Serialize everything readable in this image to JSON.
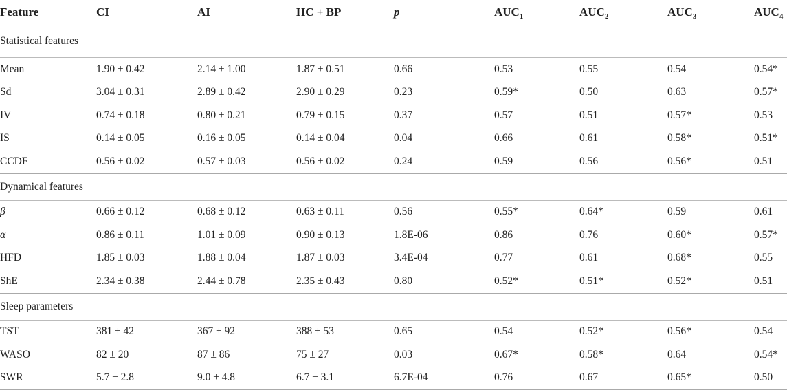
{
  "table": {
    "headers": [
      {
        "text": "Feature",
        "sub": ""
      },
      {
        "text": "CI",
        "sub": ""
      },
      {
        "text": "AI",
        "sub": ""
      },
      {
        "text": "HC + BP",
        "sub": ""
      },
      {
        "text": "p",
        "sub": ""
      },
      {
        "text": "AUC",
        "sub": "1"
      },
      {
        "text": "AUC",
        "sub": "2"
      },
      {
        "text": "AUC",
        "sub": "3"
      },
      {
        "text": "AUC",
        "sub": "4"
      }
    ],
    "sections": [
      {
        "title": "Statistical features",
        "rows": [
          [
            "Mean",
            "1.90 ± 0.42",
            "2.14 ± 1.00",
            "1.87 ± 0.51",
            "0.66",
            "0.53",
            "0.55",
            "0.54",
            "0.54*"
          ],
          [
            "Sd",
            "3.04 ± 0.31",
            "2.89 ± 0.42",
            "2.90 ± 0.29",
            "0.23",
            "0.59*",
            "0.50",
            "0.63",
            "0.57*"
          ],
          [
            "IV",
            "0.74 ± 0.18",
            "0.80 ± 0.21",
            "0.79 ± 0.15",
            "0.37",
            "0.57",
            "0.51",
            "0.57*",
            "0.53"
          ],
          [
            "IS",
            "0.14 ± 0.05",
            "0.16 ± 0.05",
            "0.14 ± 0.04",
            "0.04",
            "0.66",
            "0.61",
            "0.58*",
            "0.51*"
          ],
          [
            "CCDF",
            "0.56 ± 0.02",
            "0.57 ± 0.03",
            "0.56 ± 0.02",
            "0.24",
            "0.59",
            "0.56",
            "0.56*",
            "0.51"
          ]
        ]
      },
      {
        "title": "Dynamical features",
        "rows": [
          [
            "β",
            "0.66 ± 0.12",
            "0.68 ± 0.12",
            "0.63 ± 0.11",
            "0.56",
            "0.55*",
            "0.64*",
            "0.59",
            "0.61"
          ],
          [
            "α",
            "0.86 ± 0.11",
            "1.01 ± 0.09",
            "0.90 ± 0.13",
            "1.8E-06",
            "0.86",
            "0.76",
            "0.60*",
            "0.57*"
          ],
          [
            "HFD",
            "1.85 ± 0.03",
            "1.88 ± 0.04",
            "1.87 ± 0.03",
            "3.4E-04",
            "0.77",
            "0.61",
            "0.68*",
            "0.55"
          ],
          [
            "ShE",
            "2.34 ± 0.38",
            "2.44 ± 0.78",
            "2.35 ± 0.43",
            "0.80",
            "0.52*",
            "0.51*",
            "0.52*",
            "0.51"
          ]
        ]
      },
      {
        "title": "Sleep parameters",
        "rows": [
          [
            "TST",
            "381 ± 42",
            "367 ± 92",
            "388 ± 53",
            "0.65",
            "0.54",
            "0.52*",
            "0.56*",
            "0.54"
          ],
          [
            "WASO",
            "82 ± 20",
            "87 ± 86",
            "75 ± 27",
            "0.03",
            "0.67*",
            "0.58*",
            "0.64",
            "0.54*"
          ],
          [
            "SWR",
            "5.7 ± 2.8",
            "9.0 ± 4.8",
            "6.7 ± 3.1",
            "6.7E-04",
            "0.76",
            "0.67",
            "0.65*",
            "0.50"
          ]
        ]
      }
    ]
  }
}
